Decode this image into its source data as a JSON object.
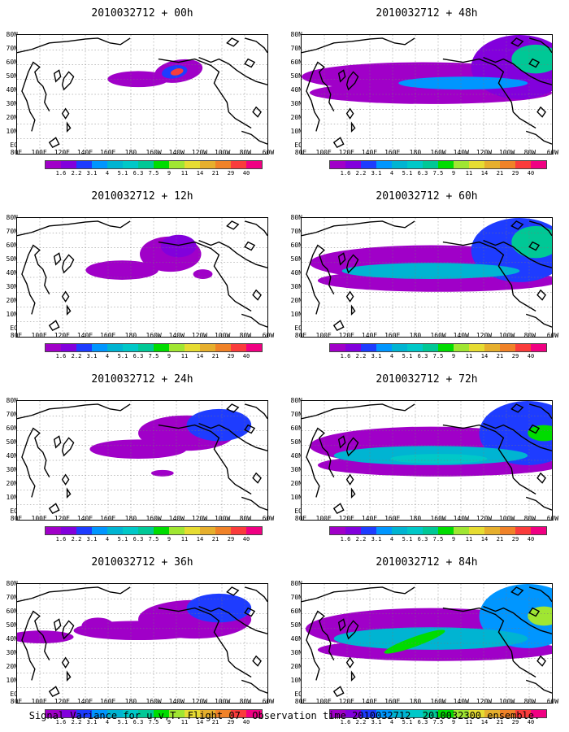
{
  "panels": [
    {
      "title": "2010032712 + 00h",
      "level": 0
    },
    {
      "title": "2010032712 + 12h",
      "level": 1
    },
    {
      "title": "2010032712 + 24h",
      "level": 2
    },
    {
      "title": "2010032712 + 36h",
      "level": 3
    },
    {
      "title": "2010032712 + 48h",
      "level": 4
    },
    {
      "title": "2010032712 + 60h",
      "level": 5
    },
    {
      "title": "2010032712 + 72h",
      "level": 6
    },
    {
      "title": "2010032712 + 84h",
      "level": 7
    }
  ],
  "lat_labels": [
    "80N",
    "70N",
    "60N",
    "50N",
    "40N",
    "30N",
    "20N",
    "10N",
    "EQ"
  ],
  "lon_labels": [
    "80E",
    "100E",
    "120E",
    "140E",
    "160E",
    "180",
    "160W",
    "140W",
    "120W",
    "100W",
    "80W",
    "60W"
  ],
  "colorbar": {
    "labels": [
      "1.6",
      "2.2",
      "3.1",
      "4",
      "5.1",
      "6.3",
      "7.5",
      "9",
      "11",
      "14",
      "21",
      "29",
      "40"
    ],
    "colors": [
      "#a000c8",
      "#8200dc",
      "#1e3cff",
      "#0096ff",
      "#00b4d2",
      "#00c8c8",
      "#00c896",
      "#00dc00",
      "#a0e632",
      "#e6dc32",
      "#e6af2d",
      "#f08228",
      "#fa3c3c",
      "#f00082"
    ]
  },
  "footer": "Signal Variance for u,v,T. Flight 07. Observation time 2010032712. 2010032300 ensemble."
}
